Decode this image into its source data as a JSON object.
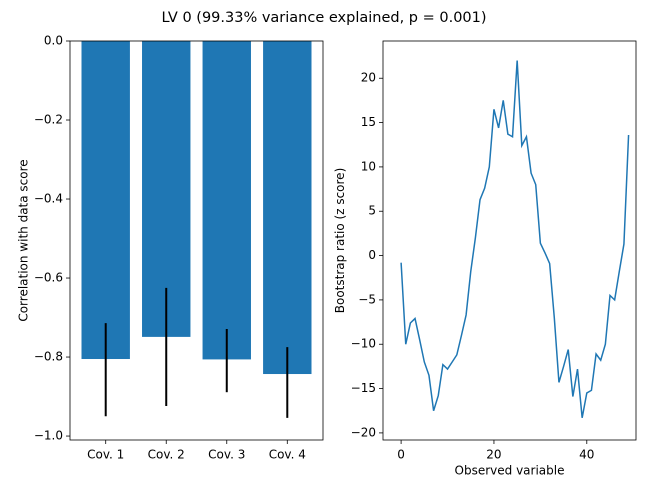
{
  "title": "LV 0 (99.33% variance explained, p = 0.001)",
  "chart_data": [
    {
      "type": "bar",
      "ylabel": "Correlation with data score",
      "categories": [
        "Cov. 1",
        "Cov. 2",
        "Cov. 3",
        "Cov. 4"
      ],
      "values": [
        -0.805,
        -0.749,
        -0.806,
        -0.843
      ],
      "ci_upper": [
        -0.714,
        -0.625,
        -0.729,
        -0.775
      ],
      "ci_lower": [
        -0.95,
        -0.924,
        -0.889,
        -0.954
      ],
      "color": "#1f77b4",
      "error_color": "#000000",
      "ylim": [
        -1.01,
        0
      ],
      "yticks": [
        {
          "value": 0,
          "label": "0.0"
        },
        {
          "value": -0.2,
          "label": "−0.2"
        },
        {
          "value": -0.4,
          "label": "−0.4"
        },
        {
          "value": -0.6,
          "label": "−0.6"
        },
        {
          "value": -0.8,
          "label": "−0.8"
        },
        {
          "value": -1.0,
          "label": "−1.0"
        }
      ]
    },
    {
      "type": "line",
      "xlabel": "Observed variable",
      "ylabel": "Bootstrap ratio (z score)",
      "x": [
        0,
        1,
        2,
        3,
        4,
        5,
        6,
        7,
        8,
        9,
        10,
        11,
        12,
        13,
        14,
        15,
        16,
        17,
        18,
        19,
        20,
        21,
        22,
        23,
        24,
        25,
        26,
        27,
        28,
        29,
        30,
        31,
        32,
        33,
        34,
        35,
        36,
        37,
        38,
        39,
        40,
        41,
        42,
        43,
        44,
        45,
        46,
        47,
        48,
        49
      ],
      "series": [
        {
          "color": "#1f77b4",
          "values": [
            -0.8,
            -10,
            -7.6,
            -7.1,
            -9.5,
            -12,
            -13.5,
            -17.5,
            -15.8,
            -12.3,
            -12.8,
            -12,
            -11.2,
            -9,
            -6.7,
            -1.8,
            2,
            6.3,
            7.6,
            10,
            16.5,
            14.4,
            17.5,
            13.7,
            13.4,
            22,
            12.4,
            13.4,
            9.3,
            8,
            1.4,
            0.3,
            -0.9,
            -7,
            -14.3,
            -12.5,
            -10.6,
            -15.9,
            -12.8,
            -18.3,
            -15.5,
            -15.2,
            -11.1,
            -11.8,
            -10,
            -4.5,
            -5,
            -1.8,
            1.3,
            13.6
          ]
        }
      ],
      "xlim": [
        -3.9,
        50.6
      ],
      "ylim": [
        -20.8,
        24.2
      ],
      "xticks": [
        0,
        20,
        40
      ],
      "yticks": [
        {
          "value": -20,
          "label": "−20"
        },
        {
          "value": -15,
          "label": "−15"
        },
        {
          "value": -10,
          "label": "−10"
        },
        {
          "value": -5,
          "label": "−5"
        },
        0,
        5,
        10,
        15,
        20
      ]
    }
  ]
}
